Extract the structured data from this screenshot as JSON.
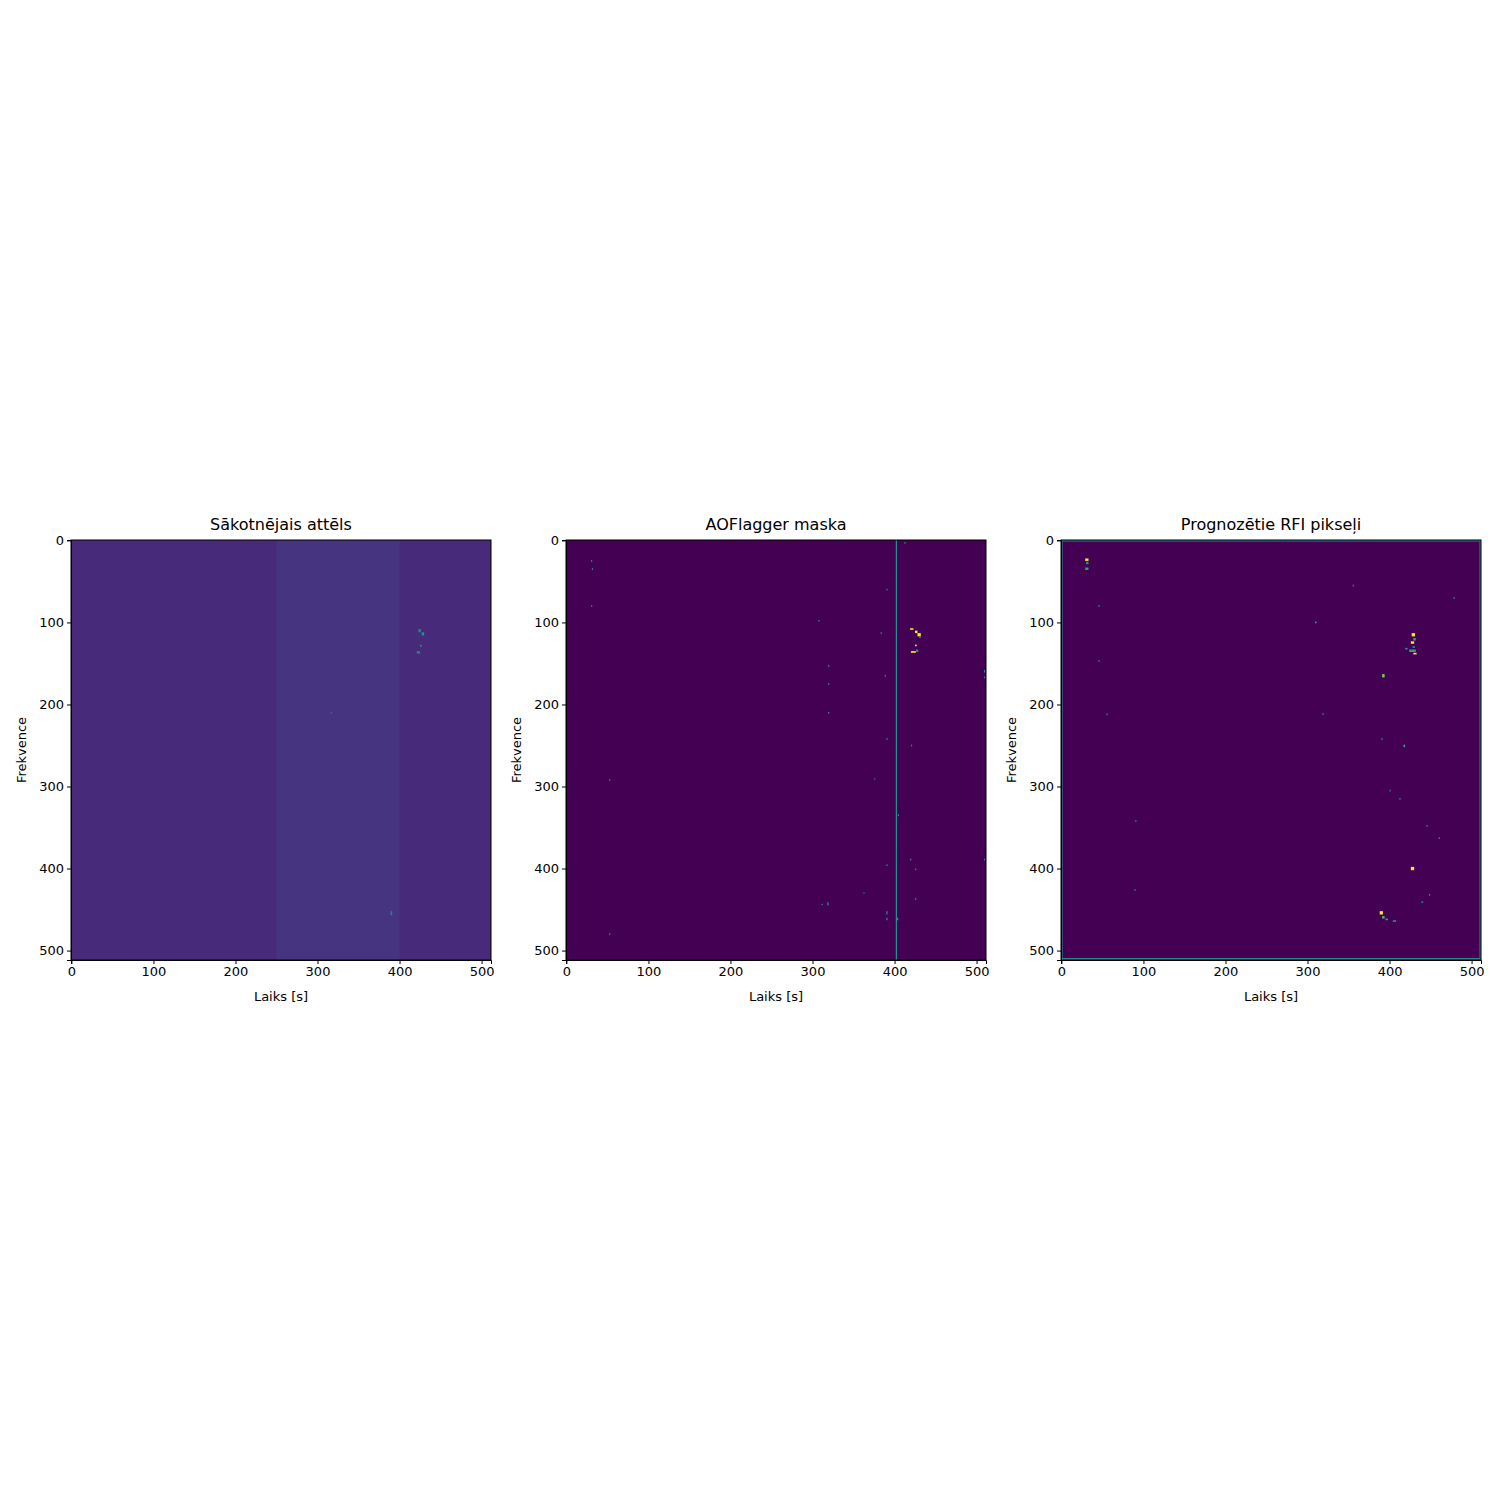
{
  "chart_data": [
    {
      "type": "heatmap",
      "title": "Sākotnējais attēls",
      "x_label": "Laiks [s]",
      "y_label": "Frekvence",
      "xlim": [
        -0.5,
        511.5
      ],
      "ylim": [
        511.5,
        -0.5
      ],
      "xticks": [
        0,
        100,
        200,
        300,
        400,
        500
      ],
      "yticks": [
        0,
        100,
        200,
        300,
        400,
        500
      ],
      "background": 0.12,
      "rects": [
        [
          250,
          -0.5,
          150,
          512,
          0.15
        ],
        [
          423,
          108,
          3,
          4,
          0.45
        ],
        [
          427,
          112,
          3,
          4,
          0.5
        ],
        [
          421,
          135,
          4,
          3,
          0.45
        ],
        [
          425,
          127,
          2,
          3,
          0.4
        ],
        [
          389,
          452,
          2,
          5,
          0.45
        ],
        [
          316,
          209,
          2,
          2,
          0.35
        ]
      ]
    },
    {
      "type": "heatmap",
      "title": "AOFlagger maska",
      "x_label": "Laiks [s]",
      "y_label": "Frekvence",
      "xlim": [
        -0.5,
        511.5
      ],
      "ylim": [
        511.5,
        -0.5
      ],
      "xticks": [
        0,
        100,
        200,
        300,
        400,
        500
      ],
      "yticks": [
        0,
        100,
        200,
        300,
        400,
        500
      ],
      "background": 0,
      "rects": [
        [
          401.5,
          -0.5,
          1.5,
          512,
          0.5
        ],
        [
          419,
          107,
          4,
          2,
          1
        ],
        [
          425,
          110,
          3,
          3,
          1
        ],
        [
          428,
          113,
          4,
          4,
          1
        ],
        [
          430,
          117,
          2,
          2,
          0.5
        ],
        [
          420,
          135,
          6,
          2,
          1
        ],
        [
          426,
          133,
          3,
          3,
          0.5
        ],
        [
          425,
          127,
          2,
          2,
          1
        ],
        [
          30,
          24,
          1.5,
          2,
          0.5
        ],
        [
          31,
          34,
          1.5,
          2,
          0.5
        ],
        [
          30,
          79,
          1.5,
          2,
          0.5
        ],
        [
          52,
          291,
          1.5,
          2,
          0.5
        ],
        [
          52,
          479,
          1.5,
          2,
          0.5
        ],
        [
          307,
          97,
          1.5,
          2,
          0.5
        ],
        [
          319,
          152,
          1.5,
          2,
          0.5
        ],
        [
          319,
          174,
          1.5,
          2,
          0.5
        ],
        [
          319,
          209,
          1.5,
          2,
          0.5
        ],
        [
          318,
          441,
          1.5,
          4,
          0.5
        ],
        [
          311,
          443,
          1.5,
          1.5,
          0.5
        ],
        [
          390,
          59,
          1.5,
          2,
          0.5
        ],
        [
          390,
          241,
          1.5,
          2,
          0.5
        ],
        [
          390,
          395,
          1.5,
          2,
          0.5
        ],
        [
          390,
          452,
          1.5,
          4,
          0.5
        ],
        [
          390,
          460,
          1.5,
          3,
          0.5
        ],
        [
          403,
          460,
          1.5,
          3,
          0.5
        ],
        [
          420,
          249,
          1.5,
          2,
          0.5
        ],
        [
          419,
          388,
          1.5,
          2,
          0.5
        ],
        [
          425,
          400,
          1.5,
          2,
          0.5
        ],
        [
          425,
          436,
          1.5,
          2,
          0.5
        ],
        [
          509,
          158,
          1.5,
          3,
          0.5
        ],
        [
          509,
          166,
          1.5,
          2,
          0.5
        ],
        [
          509,
          388,
          1.5,
          2,
          0.5
        ],
        [
          375,
          290,
          1.5,
          1.5,
          0.5
        ],
        [
          362,
          429,
          1.5,
          1.5,
          0.5
        ],
        [
          412,
          2,
          1.5,
          2,
          0.5
        ],
        [
          404,
          334,
          1.5,
          2,
          0.5
        ],
        [
          388,
          164,
          1.5,
          2,
          0.5
        ],
        [
          383,
          112,
          1.5,
          2,
          0.5
        ]
      ]
    },
    {
      "type": "heatmap",
      "title": "Prognozētie RFI pikseļi",
      "x_label": "Laiks [s]",
      "y_label": "Frekvence",
      "xlim": [
        -0.5,
        511.5
      ],
      "ylim": [
        511.5,
        -0.5
      ],
      "xticks": [
        0,
        100,
        200,
        300,
        400,
        500
      ],
      "yticks": [
        0,
        100,
        200,
        300,
        400,
        500
      ],
      "background": 0,
      "rects": [
        [
          -0.5,
          -0.5,
          2,
          512,
          0.4
        ],
        [
          509.5,
          -0.5,
          2,
          512,
          0.35
        ],
        [
          -0.5,
          -0.5,
          512,
          2,
          0.35
        ],
        [
          -0.5,
          509,
          512,
          2.5,
          0.45
        ],
        [
          29,
          22,
          4,
          3,
          1
        ],
        [
          30,
          26,
          3,
          3,
          0.5
        ],
        [
          29,
          33,
          4,
          3,
          0.6
        ],
        [
          427,
          113,
          4,
          4,
          1
        ],
        [
          429,
          119,
          3,
          3,
          0.6
        ],
        [
          426,
          123,
          4,
          3,
          1
        ],
        [
          428,
          129,
          3,
          2,
          0.5
        ],
        [
          424,
          133,
          8,
          3,
          0.6
        ],
        [
          429,
          137,
          4,
          2,
          1
        ],
        [
          419,
          131,
          3,
          2,
          0.5
        ],
        [
          391,
          163,
          3,
          4,
          0.8
        ],
        [
          388,
          452,
          4,
          4,
          1
        ],
        [
          391,
          458,
          3,
          3,
          0.7
        ],
        [
          395,
          461,
          3,
          2,
          0.6
        ],
        [
          404,
          463,
          4,
          2,
          0.5
        ],
        [
          426,
          398,
          4,
          4,
          1
        ],
        [
          309,
          99,
          2,
          2,
          0.6
        ],
        [
          318,
          211,
          2,
          1.5,
          0.5
        ],
        [
          417,
          249,
          2,
          3,
          0.6
        ],
        [
          400,
          304,
          1.5,
          2,
          0.5
        ],
        [
          412,
          314,
          1.5,
          2,
          0.5
        ],
        [
          439,
          440,
          2,
          2,
          0.5
        ],
        [
          460,
          362,
          1.5,
          2,
          0.5
        ],
        [
          55,
          211,
          1.5,
          2,
          0.5
        ],
        [
          90,
          341,
          1.5,
          2,
          0.5
        ],
        [
          89,
          425,
          1.5,
          2,
          0.5
        ],
        [
          45,
          79,
          1.5,
          2,
          0.5
        ],
        [
          45,
          146,
          1.5,
          2,
          0.5
        ],
        [
          355,
          54,
          1.5,
          2,
          0.5
        ],
        [
          478,
          69,
          1.5,
          2,
          0.5
        ],
        [
          390,
          241,
          1.5,
          2,
          0.5
        ],
        [
          445,
          347,
          1.5,
          2,
          0.5
        ],
        [
          448,
          431,
          1.5,
          2,
          0.5
        ]
      ]
    }
  ]
}
